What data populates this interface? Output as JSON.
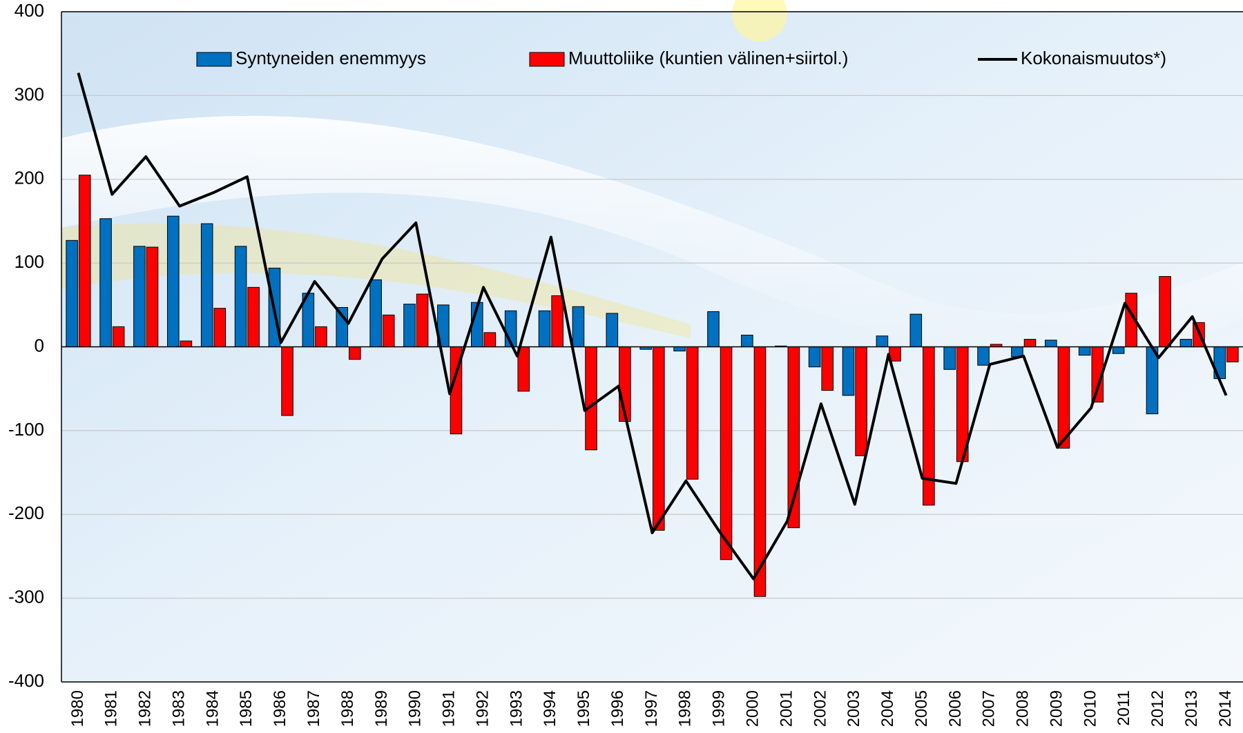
{
  "chart_data": {
    "type": "bar",
    "categories": [
      "1980",
      "1981",
      "1982",
      "1983",
      "1984",
      "1985",
      "1986",
      "1987",
      "1988",
      "1989",
      "1990",
      "1991",
      "1992",
      "1993",
      "1994",
      "1995",
      "1996",
      "1997",
      "1998",
      "1999",
      "2000",
      "2001",
      "2002",
      "2003",
      "2004",
      "2005",
      "2006",
      "2007",
      "2008",
      "2009",
      "2010",
      "2011",
      "2012",
      "2013",
      "2014"
    ],
    "series": [
      {
        "name": "Syntyneiden enemmyys",
        "color": "#0070c0",
        "type": "bar",
        "values": [
          127,
          153,
          120,
          156,
          147,
          120,
          94,
          64,
          47,
          80,
          51,
          50,
          53,
          43,
          43,
          48,
          40,
          -3,
          -5,
          42,
          14,
          1,
          -24,
          -58,
          13,
          39,
          -27,
          -22,
          -12,
          8,
          -10,
          -8,
          -80,
          9,
          -38
        ]
      },
      {
        "name": "Muuttoliike (kuntien välinen+siirtol.)",
        "color": "#ff0000",
        "type": "bar",
        "values": [
          205,
          24,
          119,
          7,
          46,
          71,
          -82,
          24,
          -15,
          38,
          63,
          -104,
          17,
          -53,
          61,
          -123,
          -89,
          -219,
          -158,
          -254,
          -298,
          -216,
          -52,
          -130,
          -17,
          -189,
          -137,
          3,
          9,
          -121,
          -66,
          64,
          84,
          29,
          -18
        ]
      },
      {
        "name": "Kokonaismuutos*)",
        "color": "#000000",
        "type": "line",
        "values": [
          327,
          182,
          227,
          168,
          184,
          203,
          5,
          78,
          28,
          105,
          148,
          -56,
          71,
          -11,
          131,
          -76,
          -47,
          -222,
          -160,
          -221,
          -277,
          -208,
          -68,
          -188,
          -9,
          -157,
          -163,
          -21,
          -11,
          -120,
          -73,
          52,
          -13,
          36,
          -58
        ]
      }
    ],
    "ylim": [
      -400,
      400
    ],
    "yticks": [
      -400,
      -300,
      -200,
      -100,
      0,
      100,
      200,
      300,
      400
    ],
    "grid": true,
    "legend": "top"
  }
}
